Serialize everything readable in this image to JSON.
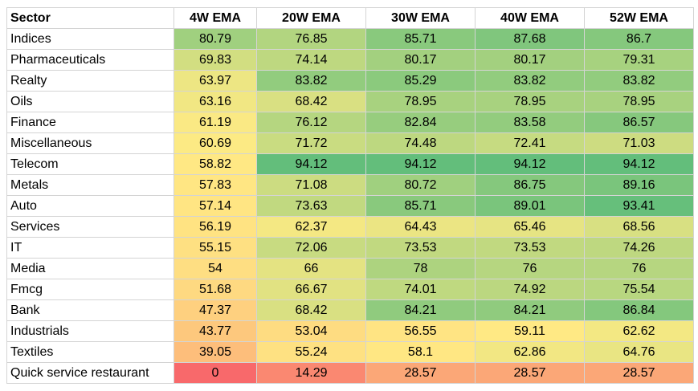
{
  "headers": [
    "Sector",
    "4W EMA",
    "20W EMA",
    "30W EMA",
    "40W EMA",
    "52W EMA"
  ],
  "rows": [
    {
      "sector": "Indices",
      "values": [
        "80.79",
        "76.85",
        "85.71",
        "87.68",
        "86.7"
      ]
    },
    {
      "sector": "Pharmaceuticals",
      "values": [
        "69.83",
        "74.14",
        "80.17",
        "80.17",
        "79.31"
      ]
    },
    {
      "sector": "Realty",
      "values": [
        "63.97",
        "83.82",
        "85.29",
        "83.82",
        "83.82"
      ]
    },
    {
      "sector": "Oils",
      "values": [
        "63.16",
        "68.42",
        "78.95",
        "78.95",
        "78.95"
      ]
    },
    {
      "sector": "Finance",
      "values": [
        "61.19",
        "76.12",
        "82.84",
        "83.58",
        "86.57"
      ]
    },
    {
      "sector": "Miscellaneous",
      "values": [
        "60.69",
        "71.72",
        "74.48",
        "72.41",
        "71.03"
      ]
    },
    {
      "sector": "Telecom",
      "values": [
        "58.82",
        "94.12",
        "94.12",
        "94.12",
        "94.12"
      ]
    },
    {
      "sector": "Metals",
      "values": [
        "57.83",
        "71.08",
        "80.72",
        "86.75",
        "89.16"
      ]
    },
    {
      "sector": "Auto",
      "values": [
        "57.14",
        "73.63",
        "85.71",
        "89.01",
        "93.41"
      ]
    },
    {
      "sector": "Services",
      "values": [
        "56.19",
        "62.37",
        "64.43",
        "65.46",
        "68.56"
      ]
    },
    {
      "sector": "IT",
      "values": [
        "55.15",
        "72.06",
        "73.53",
        "73.53",
        "74.26"
      ]
    },
    {
      "sector": "Media",
      "values": [
        "54",
        "66",
        "78",
        "76",
        "76"
      ]
    },
    {
      "sector": "Fmcg",
      "values": [
        "51.68",
        "66.67",
        "74.01",
        "74.92",
        "75.54"
      ]
    },
    {
      "sector": "Bank",
      "values": [
        "47.37",
        "68.42",
        "84.21",
        "84.21",
        "86.84"
      ]
    },
    {
      "sector": "Industrials",
      "values": [
        "43.77",
        "53.04",
        "56.55",
        "59.11",
        "62.62"
      ]
    },
    {
      "sector": "Textiles",
      "values": [
        "39.05",
        "55.24",
        "58.1",
        "62.86",
        "64.76"
      ]
    },
    {
      "sector": "Quick service restaurant",
      "values": [
        "0",
        "14.29",
        "28.57",
        "28.57",
        "28.57"
      ]
    }
  ],
  "color_scale": {
    "min": 0,
    "mid": 60,
    "max": 94.12,
    "low_color": "#f8696b",
    "mid_color": "#ffeb84",
    "high_color": "#63be7b"
  }
}
